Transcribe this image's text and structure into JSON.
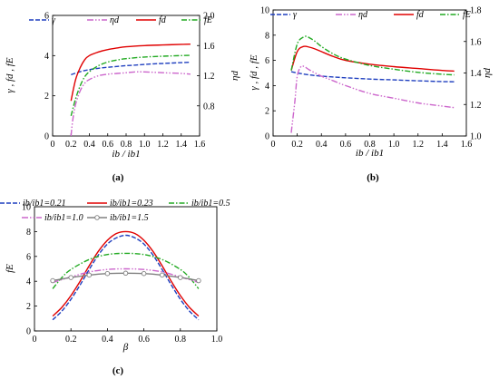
{
  "chart_data": [
    {
      "id": "a",
      "panel_label": "(a)",
      "type": "line",
      "xlabel": "ib / ib1",
      "ylabel": "γ , fd , fE",
      "y2label": "ηd",
      "xlim": [
        0,
        1.6
      ],
      "ylim": [
        0,
        6
      ],
      "y2lim": [
        0.4,
        2.0
      ],
      "xticks": [
        "0",
        "0.2",
        "0.4",
        "0.6",
        "0.8",
        "1.0",
        "1.2",
        "1.4",
        "1.6"
      ],
      "yticks": [
        "0",
        "2",
        "4",
        "6"
      ],
      "y2ticks": [
        "0.8",
        "1.2",
        "1.6",
        "2.0"
      ],
      "legend_position": "top",
      "series": [
        {
          "name": "γ",
          "axis": "left",
          "color": "#1f3fbf",
          "dash": "short",
          "x": [
            0.2,
            0.3,
            0.4,
            0.5,
            0.6,
            0.7,
            0.8,
            0.9,
            1.0,
            1.1,
            1.2,
            1.3,
            1.4,
            1.5
          ],
          "y": [
            3.05,
            3.2,
            3.3,
            3.37,
            3.42,
            3.46,
            3.5,
            3.53,
            3.56,
            3.59,
            3.61,
            3.63,
            3.65,
            3.67
          ]
        },
        {
          "name": "ηd",
          "axis": "right",
          "color": "#cc66cc",
          "dash": "dashdotdot",
          "x": [
            0.2,
            0.22,
            0.25,
            0.3,
            0.35,
            0.4,
            0.5,
            0.6,
            0.7,
            0.8,
            0.9,
            1.0,
            1.2,
            1.4,
            1.5
          ],
          "y": [
            0.4,
            0.62,
            0.82,
            1.0,
            1.1,
            1.15,
            1.2,
            1.22,
            1.23,
            1.24,
            1.25,
            1.25,
            1.24,
            1.23,
            1.22
          ]
        },
        {
          "name": "fd",
          "axis": "left",
          "color": "#e00000",
          "dash": "solid",
          "x": [
            0.2,
            0.25,
            0.3,
            0.35,
            0.4,
            0.5,
            0.6,
            0.7,
            0.8,
            1.0,
            1.2,
            1.4,
            1.5
          ],
          "y": [
            1.75,
            2.8,
            3.4,
            3.8,
            4.0,
            4.18,
            4.3,
            4.38,
            4.44,
            4.5,
            4.53,
            4.56,
            4.57
          ]
        },
        {
          "name": "fE",
          "axis": "left",
          "color": "#22aa22",
          "dash": "dashdot",
          "x": [
            0.2,
            0.25,
            0.3,
            0.35,
            0.4,
            0.5,
            0.6,
            0.7,
            0.8,
            1.0,
            1.2,
            1.4,
            1.5
          ],
          "y": [
            1.0,
            1.85,
            2.5,
            2.95,
            3.2,
            3.5,
            3.68,
            3.78,
            3.85,
            3.93,
            3.97,
            4.0,
            4.01
          ]
        }
      ]
    },
    {
      "id": "b",
      "panel_label": "(b)",
      "type": "line",
      "xlabel": "ib / ib1",
      "ylabel": "γ , fd , fE",
      "y2label": "ηd",
      "xlim": [
        0,
        1.6
      ],
      "ylim": [
        0,
        10
      ],
      "y2lim": [
        1.0,
        1.8
      ],
      "xticks": [
        "0",
        "0.2",
        "0.4",
        "0.6",
        "0.8",
        "1.0",
        "1.2",
        "1.4",
        "1.6"
      ],
      "yticks": [
        "0",
        "2",
        "4",
        "6",
        "8",
        "10"
      ],
      "y2ticks": [
        "1.0",
        "1.2",
        "1.4",
        "1.6",
        "1.8"
      ],
      "legend_position": "top",
      "series": [
        {
          "name": "γ",
          "axis": "left",
          "color": "#1f3fbf",
          "dash": "short",
          "x": [
            0.15,
            0.2,
            0.3,
            0.4,
            0.6,
            0.8,
            1.0,
            1.2,
            1.4,
            1.5
          ],
          "y": [
            5.1,
            5.0,
            4.85,
            4.75,
            4.62,
            4.52,
            4.45,
            4.38,
            4.32,
            4.3
          ]
        },
        {
          "name": "ηd",
          "axis": "right",
          "color": "#cc66cc",
          "dash": "dashdotdot",
          "x": [
            0.15,
            0.18,
            0.2,
            0.23,
            0.26,
            0.3,
            0.4,
            0.5,
            0.6,
            0.8,
            1.0,
            1.2,
            1.4,
            1.5
          ],
          "y": [
            1.02,
            1.22,
            1.38,
            1.44,
            1.44,
            1.42,
            1.38,
            1.35,
            1.32,
            1.27,
            1.24,
            1.21,
            1.19,
            1.18
          ]
        },
        {
          "name": "fd",
          "axis": "left",
          "color": "#e00000",
          "dash": "solid",
          "x": [
            0.15,
            0.2,
            0.25,
            0.3,
            0.35,
            0.4,
            0.5,
            0.6,
            0.8,
            1.0,
            1.2,
            1.4,
            1.5
          ],
          "y": [
            5.2,
            6.7,
            7.1,
            7.05,
            6.9,
            6.7,
            6.3,
            6.0,
            5.7,
            5.5,
            5.35,
            5.2,
            5.15
          ]
        },
        {
          "name": "fE",
          "axis": "left",
          "color": "#22aa22",
          "dash": "dashdot",
          "x": [
            0.15,
            0.2,
            0.25,
            0.28,
            0.3,
            0.35,
            0.4,
            0.5,
            0.6,
            0.8,
            1.0,
            1.2,
            1.4,
            1.5
          ],
          "y": [
            5.2,
            7.3,
            7.85,
            7.9,
            7.8,
            7.5,
            7.1,
            6.5,
            6.1,
            5.6,
            5.3,
            5.05,
            4.9,
            4.85
          ]
        }
      ]
    },
    {
      "id": "c",
      "panel_label": "(c)",
      "type": "line",
      "xlabel": "β",
      "ylabel": "fE",
      "xlim": [
        0,
        1.0
      ],
      "ylim": [
        0,
        10
      ],
      "xticks": [
        "0",
        "0.2",
        "0.4",
        "0.6",
        "0.8",
        "1.0"
      ],
      "yticks": [
        "0",
        "2",
        "4",
        "6",
        "8",
        "10"
      ],
      "legend_position": "top",
      "series": [
        {
          "name": "ib/ib1=0.21",
          "color": "#1f3fbf",
          "dash": "short",
          "x": [
            0.1,
            0.15,
            0.2,
            0.25,
            0.3,
            0.35,
            0.4,
            0.45,
            0.5,
            0.55,
            0.6,
            0.65,
            0.7,
            0.75,
            0.8,
            0.85,
            0.9
          ],
          "y": [
            0.9,
            1.6,
            2.55,
            3.7,
            4.95,
            6.1,
            7.0,
            7.5,
            7.7,
            7.5,
            7.0,
            6.1,
            4.95,
            3.7,
            2.55,
            1.6,
            0.9
          ]
        },
        {
          "name": "ib/ib1=0.23",
          "color": "#e00000",
          "dash": "solid",
          "x": [
            0.1,
            0.15,
            0.2,
            0.25,
            0.3,
            0.35,
            0.4,
            0.45,
            0.5,
            0.55,
            0.6,
            0.65,
            0.7,
            0.75,
            0.8,
            0.85,
            0.9
          ],
          "y": [
            1.2,
            1.9,
            2.85,
            4.0,
            5.25,
            6.4,
            7.3,
            7.85,
            8.0,
            7.85,
            7.3,
            6.4,
            5.25,
            4.0,
            2.85,
            1.9,
            1.2
          ]
        },
        {
          "name": "ib/ib1=0.5",
          "color": "#22aa22",
          "dash": "dashdot",
          "x": [
            0.1,
            0.15,
            0.2,
            0.3,
            0.4,
            0.5,
            0.6,
            0.7,
            0.8,
            0.85,
            0.9
          ],
          "y": [
            3.4,
            4.3,
            4.95,
            5.75,
            6.15,
            6.25,
            6.15,
            5.75,
            4.95,
            4.3,
            3.4
          ]
        },
        {
          "name": "ib/ib1=1.0",
          "color": "#cc66cc",
          "dash": "dashdotdot",
          "x": [
            0.1,
            0.2,
            0.3,
            0.4,
            0.5,
            0.6,
            0.7,
            0.8,
            0.9
          ],
          "y": [
            3.9,
            4.35,
            4.75,
            4.95,
            5.0,
            4.95,
            4.75,
            4.35,
            3.9
          ]
        },
        {
          "name": "ib/ib1=1.5",
          "color": "#808080",
          "dash": "solid",
          "marker": "circle",
          "x": [
            0.1,
            0.2,
            0.3,
            0.4,
            0.5,
            0.6,
            0.7,
            0.8,
            0.9
          ],
          "y": [
            4.05,
            4.3,
            4.5,
            4.62,
            4.65,
            4.62,
            4.5,
            4.3,
            4.05
          ]
        }
      ]
    }
  ]
}
